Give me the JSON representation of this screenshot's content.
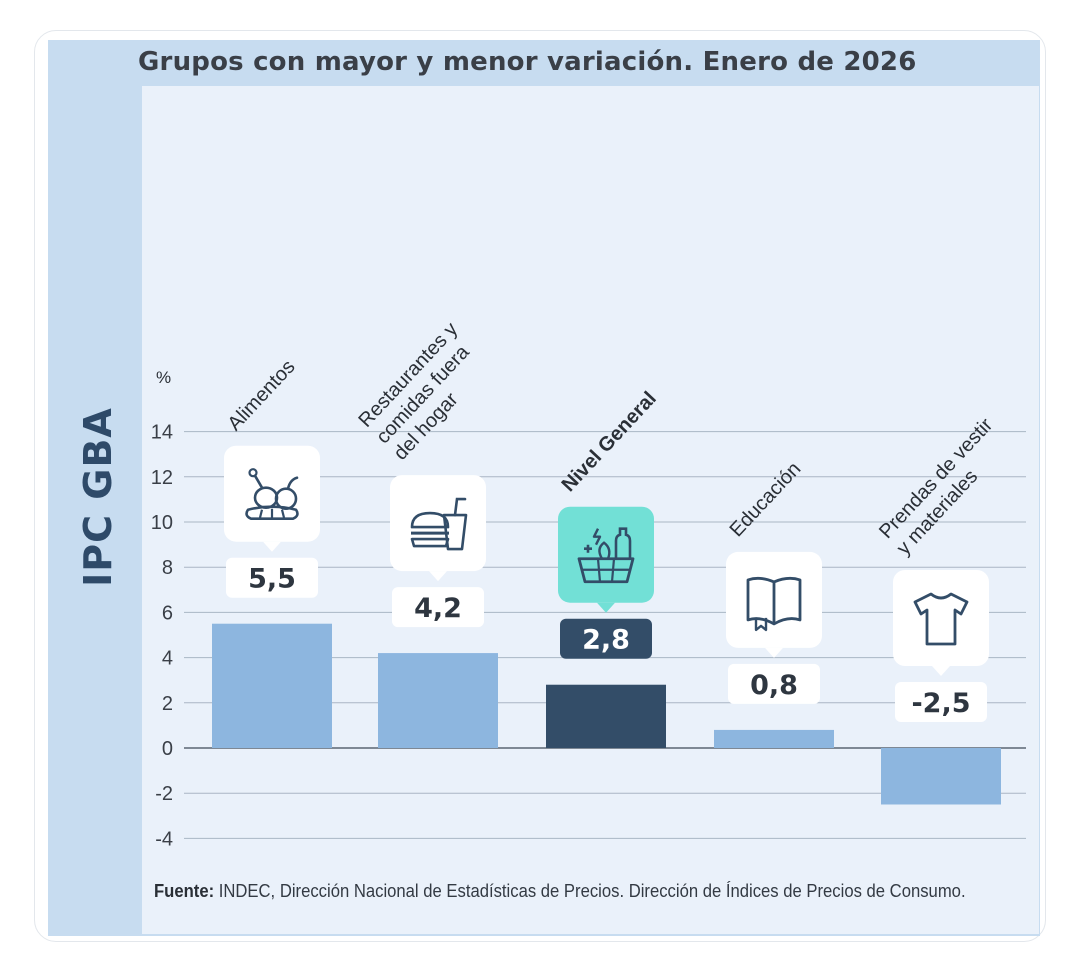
{
  "chart_data": {
    "type": "bar",
    "title": "Grupos con mayor y menor variación. Enero de 2026",
    "side_title": "IPC GBA",
    "ylabel": "%",
    "ylim": [
      -4,
      14
    ],
    "yticks": [
      14,
      12,
      10,
      8,
      6,
      4,
      2,
      0,
      -2,
      -4
    ],
    "grid": true,
    "categories": [
      [
        "Alimentos"
      ],
      [
        "Restaurantes y",
        "comidas fuera",
        "del hogar"
      ],
      [
        "Nivel General"
      ],
      [
        "Educación"
      ],
      [
        "Prendas de vestir",
        "y materiales"
      ]
    ],
    "values": [
      5.5,
      4.2,
      2.8,
      0.8,
      -2.5
    ],
    "value_labels": [
      "5,5",
      "4,2",
      "2,8",
      "0,8",
      "-2,5"
    ],
    "icons": [
      "chicken-bread-icon",
      "burger-drink-icon",
      "grocery-basket-icon",
      "book-icon",
      "tshirt-icon"
    ],
    "highlight_index": 2,
    "colors": {
      "bar": "#8db6df",
      "bar_highlight": "#334d68",
      "icon_box": "#ffffff",
      "icon_box_highlight": "#72e0d6",
      "icon_stroke": "#334d68",
      "grid": "#a9b6c4",
      "zero_line": "#5b6672"
    }
  },
  "source": {
    "label": "Fuente:",
    "text": " INDEC, Dirección Nacional de Estadísticas de Precios. Dirección de Índices de Precios de Consumo."
  }
}
